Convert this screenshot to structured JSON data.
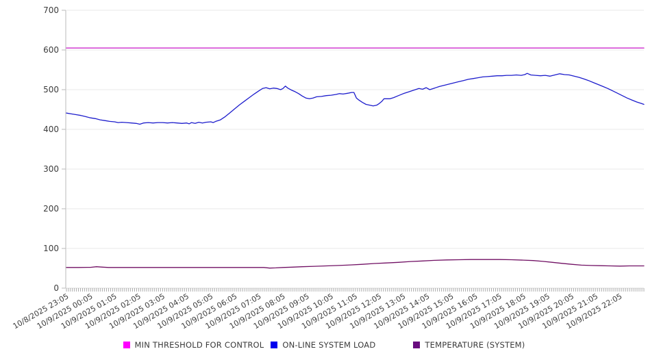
{
  "chart_data": {
    "type": "line",
    "title": "",
    "xlabel": "",
    "ylabel": "",
    "grid": "horizontal-only",
    "legend_position": "bottom",
    "background": "#ffffff",
    "axis_color": "#b8b8b8",
    "gridline_color": "#e9e9e9",
    "tick_color": "#9a9a9a",
    "label_color": "#3c3c3c",
    "y_axis": {
      "min": 0,
      "max": 700,
      "step": 100,
      "tick_labels": [
        "0",
        "100",
        "200",
        "300",
        "400",
        "500",
        "600",
        "700"
      ]
    },
    "x_axis": {
      "hours_span": 24,
      "minor_ticks_per_hour": 12,
      "tick_labels": [
        "10/8/2025 23:05",
        "10/9/2025 00:05",
        "10/9/2025 01:05",
        "10/9/2025 02:05",
        "10/9/2025 03:05",
        "10/9/2025 04:05",
        "10/9/2025 05:05",
        "10/9/2025 06:05",
        "10/9/2025 07:05",
        "10/9/2025 08:05",
        "10/9/2025 09:05",
        "10/9/2025 10:05",
        "10/9/2025 11:05",
        "10/9/2025 12:05",
        "10/9/2025 13:05",
        "10/9/2025 14:05",
        "10/9/2025 15:05",
        "10/9/2025 16:05",
        "10/9/2025 17:05",
        "10/9/2025 18:05",
        "10/9/2025 19:05",
        "10/9/2025 20:05",
        "10/9/2025 21:05",
        "10/9/2025 22:05"
      ]
    },
    "series": [
      {
        "name": "MIN THRESHOLD FOR CONTROL",
        "color": "#c713c7",
        "swatch": "#ff00ff",
        "points": [
          [
            0,
            605
          ],
          [
            24,
            605
          ]
        ]
      },
      {
        "name": "ON-LINE SYSTEM LOAD",
        "color": "#1c1ccc",
        "swatch": "#0000ee",
        "points": [
          [
            0,
            441
          ],
          [
            0.2,
            439
          ],
          [
            0.4,
            437
          ],
          [
            0.6,
            435
          ],
          [
            0.8,
            432
          ],
          [
            1,
            429
          ],
          [
            1.2,
            427
          ],
          [
            1.4,
            424
          ],
          [
            1.6,
            422
          ],
          [
            1.8,
            420
          ],
          [
            2,
            419
          ],
          [
            2.15,
            417
          ],
          [
            2.3,
            418
          ],
          [
            2.5,
            417
          ],
          [
            2.7,
            416
          ],
          [
            2.9,
            415
          ],
          [
            3.05,
            413
          ],
          [
            3.2,
            416
          ],
          [
            3.4,
            417
          ],
          [
            3.6,
            416
          ],
          [
            3.8,
            417
          ],
          [
            4,
            417
          ],
          [
            4.2,
            416
          ],
          [
            4.4,
            417
          ],
          [
            4.6,
            416
          ],
          [
            4.8,
            415
          ],
          [
            5,
            416
          ],
          [
            5.1,
            414
          ],
          [
            5.2,
            417
          ],
          [
            5.35,
            415
          ],
          [
            5.5,
            418
          ],
          [
            5.65,
            416
          ],
          [
            5.8,
            418
          ],
          [
            6,
            419
          ],
          [
            6.1,
            417
          ],
          [
            6.2,
            420
          ],
          [
            6.4,
            424
          ],
          [
            6.6,
            432
          ],
          [
            6.8,
            442
          ],
          [
            7,
            452
          ],
          [
            7.2,
            462
          ],
          [
            7.4,
            471
          ],
          [
            7.6,
            480
          ],
          [
            7.8,
            489
          ],
          [
            8,
            497
          ],
          [
            8.15,
            503
          ],
          [
            8.3,
            505
          ],
          [
            8.45,
            502
          ],
          [
            8.6,
            504
          ],
          [
            8.75,
            503
          ],
          [
            8.9,
            500
          ],
          [
            9,
            503
          ],
          [
            9.1,
            509
          ],
          [
            9.2,
            504
          ],
          [
            9.35,
            499
          ],
          [
            9.5,
            495
          ],
          [
            9.65,
            490
          ],
          [
            9.8,
            484
          ],
          [
            9.95,
            479
          ],
          [
            10.1,
            477
          ],
          [
            10.25,
            479
          ],
          [
            10.4,
            482
          ],
          [
            10.6,
            483
          ],
          [
            10.8,
            485
          ],
          [
            11,
            486
          ],
          [
            11.2,
            488
          ],
          [
            11.35,
            490
          ],
          [
            11.5,
            489
          ],
          [
            11.7,
            491
          ],
          [
            11.85,
            493
          ],
          [
            11.95,
            493
          ],
          [
            12.05,
            479
          ],
          [
            12.15,
            474
          ],
          [
            12.3,
            468
          ],
          [
            12.45,
            463
          ],
          [
            12.6,
            461
          ],
          [
            12.75,
            459
          ],
          [
            12.9,
            461
          ],
          [
            13,
            465
          ],
          [
            13.1,
            470
          ],
          [
            13.2,
            477
          ],
          [
            13.45,
            477
          ],
          [
            13.6,
            480
          ],
          [
            13.8,
            485
          ],
          [
            14,
            490
          ],
          [
            14.2,
            494
          ],
          [
            14.35,
            497
          ],
          [
            14.5,
            500
          ],
          [
            14.65,
            503
          ],
          [
            14.8,
            501
          ],
          [
            14.95,
            505
          ],
          [
            15.1,
            500
          ],
          [
            15.3,
            504
          ],
          [
            15.5,
            508
          ],
          [
            15.7,
            511
          ],
          [
            15.9,
            514
          ],
          [
            16.1,
            517
          ],
          [
            16.3,
            520
          ],
          [
            16.5,
            523
          ],
          [
            16.7,
            526
          ],
          [
            16.9,
            528
          ],
          [
            17.1,
            530
          ],
          [
            17.3,
            532
          ],
          [
            17.5,
            533
          ],
          [
            17.7,
            534
          ],
          [
            17.9,
            535
          ],
          [
            18.1,
            535
          ],
          [
            18.3,
            536
          ],
          [
            18.5,
            536
          ],
          [
            18.7,
            537
          ],
          [
            18.9,
            536
          ],
          [
            19.05,
            538
          ],
          [
            19.15,
            541
          ],
          [
            19.3,
            537
          ],
          [
            19.5,
            536
          ],
          [
            19.7,
            535
          ],
          [
            19.9,
            536
          ],
          [
            20.1,
            534
          ],
          [
            20.3,
            537
          ],
          [
            20.5,
            540
          ],
          [
            20.7,
            538
          ],
          [
            20.9,
            537
          ],
          [
            21.1,
            534
          ],
          [
            21.3,
            531
          ],
          [
            21.5,
            527
          ],
          [
            21.7,
            523
          ],
          [
            21.9,
            518
          ],
          [
            22.1,
            513
          ],
          [
            22.3,
            508
          ],
          [
            22.5,
            503
          ],
          [
            22.7,
            497
          ],
          [
            22.9,
            491
          ],
          [
            23.1,
            485
          ],
          [
            23.3,
            479
          ],
          [
            23.5,
            474
          ],
          [
            23.7,
            469
          ],
          [
            23.9,
            465
          ],
          [
            24,
            463
          ]
        ]
      },
      {
        "name": "TEMPERATURE (SYSTEM)",
        "color": "#700f63",
        "swatch": "#690c7e",
        "points": [
          [
            0,
            52
          ],
          [
            0.5,
            52
          ],
          [
            1,
            52.5
          ],
          [
            1.25,
            54
          ],
          [
            1.5,
            53
          ],
          [
            1.75,
            52
          ],
          [
            2.5,
            52
          ],
          [
            3.25,
            52
          ],
          [
            4,
            52
          ],
          [
            4.75,
            52
          ],
          [
            5.5,
            52
          ],
          [
            6.25,
            52
          ],
          [
            7,
            52
          ],
          [
            7.75,
            52
          ],
          [
            8.2,
            52
          ],
          [
            8.45,
            50.5
          ],
          [
            8.7,
            51
          ],
          [
            9,
            52
          ],
          [
            9.4,
            53
          ],
          [
            9.8,
            54
          ],
          [
            10.3,
            55
          ],
          [
            10.8,
            56
          ],
          [
            11.3,
            57
          ],
          [
            11.8,
            58.5
          ],
          [
            12.3,
            60
          ],
          [
            12.8,
            62
          ],
          [
            13.3,
            63.5
          ],
          [
            13.8,
            65
          ],
          [
            14.3,
            67
          ],
          [
            14.8,
            68.5
          ],
          [
            15.3,
            70
          ],
          [
            15.8,
            71
          ],
          [
            16.3,
            71.5
          ],
          [
            16.8,
            72
          ],
          [
            17.4,
            72
          ],
          [
            18,
            72
          ],
          [
            18.5,
            71.5
          ],
          [
            19,
            70.5
          ],
          [
            19.4,
            69.5
          ],
          [
            19.8,
            67.5
          ],
          [
            20.2,
            65
          ],
          [
            20.6,
            62.5
          ],
          [
            21,
            60
          ],
          [
            21.4,
            58
          ],
          [
            21.8,
            57
          ],
          [
            22.2,
            56.5
          ],
          [
            22.6,
            56
          ],
          [
            23,
            55.5
          ],
          [
            23.4,
            56
          ],
          [
            23.8,
            56
          ],
          [
            24,
            56
          ]
        ]
      }
    ]
  },
  "legend": {
    "items": [
      {
        "label": "MIN THRESHOLD FOR CONTROL"
      },
      {
        "label": "ON-LINE SYSTEM LOAD"
      },
      {
        "label": "TEMPERATURE (SYSTEM)"
      }
    ]
  }
}
